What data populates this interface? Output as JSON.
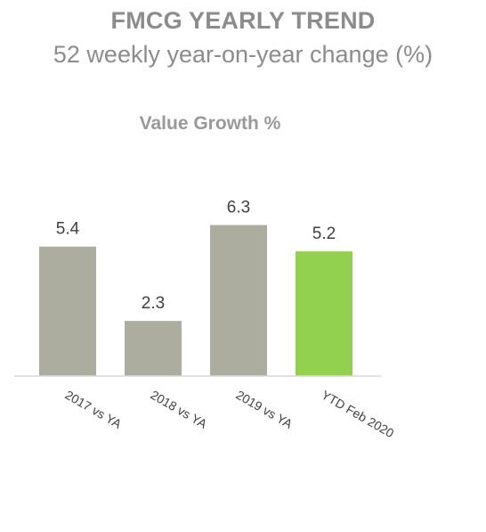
{
  "header": {
    "title": "FMCG YEARLY TREND",
    "subtitle": "52 weekly year-on-year change (%)"
  },
  "chart_data": {
    "type": "bar",
    "title": "Value Growth %",
    "categories": [
      "2017 vs YA",
      "2018 vs YA",
      "2019 vs YA",
      "YTD Feb 2020"
    ],
    "values": [
      5.4,
      2.3,
      6.3,
      5.2
    ],
    "data_labels": [
      "5.4",
      "2.3",
      "6.3",
      "5.2"
    ],
    "bar_colors": [
      "#adad9f",
      "#adad9f",
      "#adad9f",
      "#92d050"
    ],
    "xlabel": "",
    "ylabel": "",
    "ylim": [
      0,
      7.5
    ],
    "grid": false,
    "legend": "none"
  }
}
